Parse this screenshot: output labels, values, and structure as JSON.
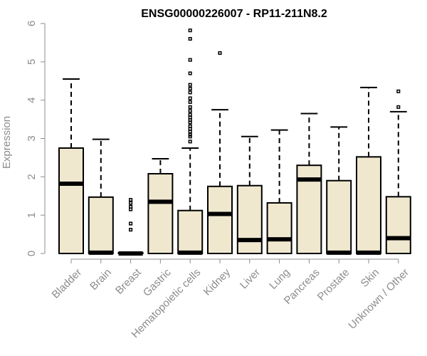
{
  "chart_data": {
    "type": "boxplot",
    "title": "ENSG00000226007 - RP11-211N8.2",
    "xlabel": "",
    "ylabel": "Expression",
    "ylim": [
      0,
      6
    ],
    "yticks": [
      0,
      1,
      2,
      3,
      4,
      5,
      6
    ],
    "grid": false,
    "legend": "none",
    "colors": {
      "box_fill": "#efe8cf",
      "box_stroke": "#000000",
      "axis": "#8c8c8c"
    },
    "categories": [
      "Bladder",
      "Brain",
      "Breast",
      "Gastric",
      "Hematopoietic cells",
      "Kidney",
      "Liver",
      "Lung",
      "Pancreas",
      "Prostate",
      "Skin",
      "Unknown / Other"
    ],
    "boxes": [
      {
        "category": "Bladder",
        "min": 0,
        "q1": 0,
        "median": 1.82,
        "q3": 2.75,
        "max": 4.55,
        "outliers": []
      },
      {
        "category": "Brain",
        "min": 0,
        "q1": 0,
        "median": 0.02,
        "q3": 1.47,
        "max": 2.98,
        "outliers": []
      },
      {
        "category": "Breast",
        "min": 0,
        "q1": 0,
        "median": 0.0,
        "q3": 0.02,
        "max": 0.02,
        "outliers": [
          0.62,
          0.78,
          1.15,
          1.22,
          1.32,
          1.4
        ]
      },
      {
        "category": "Gastric",
        "min": 0,
        "q1": 0,
        "median": 1.35,
        "q3": 2.08,
        "max": 2.47,
        "outliers": []
      },
      {
        "category": "Hematopoietic cells",
        "min": 0,
        "q1": 0,
        "median": 0.02,
        "q3": 1.12,
        "max": 2.75,
        "outliers": [
          2.92,
          3.05,
          3.1,
          3.18,
          3.25,
          3.32,
          3.42,
          3.48,
          3.55,
          3.62,
          3.72,
          3.82,
          3.95,
          4.05,
          4.2,
          4.3,
          4.4,
          4.7,
          5.05,
          5.6,
          5.82
        ]
      },
      {
        "category": "Kidney",
        "min": 0,
        "q1": 0,
        "median": 1.03,
        "q3": 1.75,
        "max": 3.75,
        "outliers": [
          5.23
        ]
      },
      {
        "category": "Liver",
        "min": 0,
        "q1": 0,
        "median": 0.35,
        "q3": 1.77,
        "max": 3.05,
        "outliers": []
      },
      {
        "category": "Lung",
        "min": 0,
        "q1": 0,
        "median": 0.37,
        "q3": 1.32,
        "max": 3.22,
        "outliers": []
      },
      {
        "category": "Pancreas",
        "min": 0,
        "q1": 0,
        "median": 1.93,
        "q3": 2.3,
        "max": 3.65,
        "outliers": []
      },
      {
        "category": "Prostate",
        "min": 0,
        "q1": 0,
        "median": 0.02,
        "q3": 1.9,
        "max": 3.3,
        "outliers": []
      },
      {
        "category": "Skin",
        "min": 0,
        "q1": 0,
        "median": 0.02,
        "q3": 2.52,
        "max": 4.33,
        "outliers": []
      },
      {
        "category": "Unknown / Other",
        "min": 0,
        "q1": 0,
        "median": 0.4,
        "q3": 1.48,
        "max": 3.7,
        "outliers": [
          3.82,
          4.23
        ]
      }
    ]
  }
}
